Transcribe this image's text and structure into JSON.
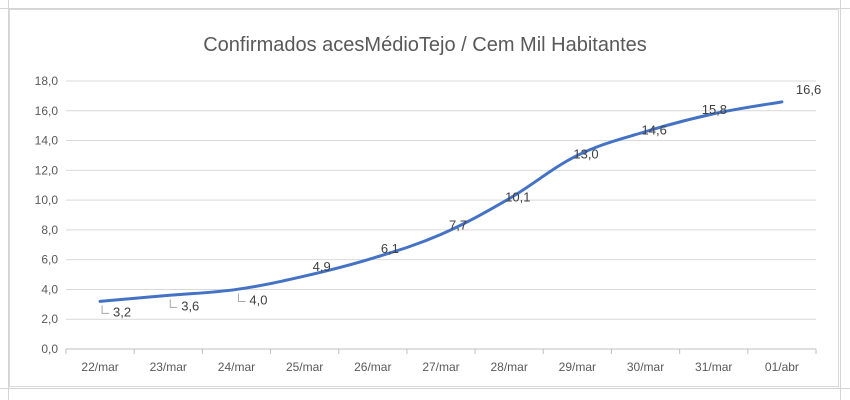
{
  "chart_data": {
    "type": "line",
    "title": "Confirmados acesMédioTejo / Cem Mil Habitantes",
    "xlabel": "",
    "ylabel": "",
    "categories": [
      "22/mar",
      "23/mar",
      "24/mar",
      "25/mar",
      "26/mar",
      "27/mar",
      "28/mar",
      "29/mar",
      "30/mar",
      "31/mar",
      "01/abr"
    ],
    "series": [
      {
        "values": [
          3.2,
          3.6,
          4.0,
          4.9,
          6.1,
          7.7,
          10.1,
          13.0,
          14.6,
          15.8,
          16.6
        ],
        "data_labels": [
          "3,2",
          "3,6",
          "4,0",
          "4,9",
          "6,1",
          "7,7",
          "10,1",
          "13,0",
          "14,6",
          "15,8",
          "16,6"
        ],
        "color": "#4472c4"
      }
    ],
    "ylim": [
      0,
      18
    ],
    "y_ticks": [
      "0,0",
      "2,0",
      "4,0",
      "6,0",
      "8,0",
      "10,0",
      "12,0",
      "14,0",
      "16,0",
      "18,0"
    ],
    "grid": "horizontal",
    "legend": "none"
  }
}
